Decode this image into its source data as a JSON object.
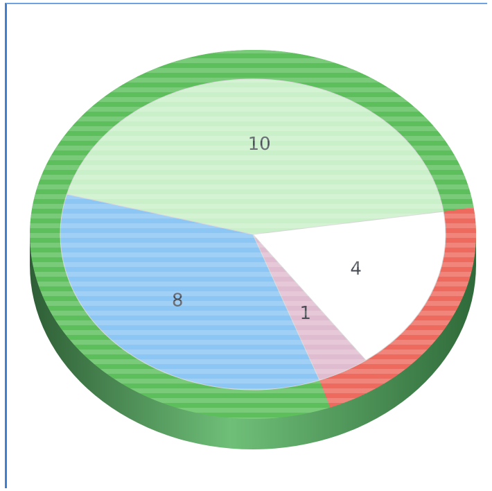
{
  "chart_data": {
    "type": "pie",
    "title": "",
    "slices": [
      {
        "label": "10",
        "value": 10,
        "color": "#c9f0c9",
        "edge_color": "#5cbf5c"
      },
      {
        "label": "4",
        "value": 4,
        "color": "#ffffff",
        "edge_color": "#ef6a5e"
      },
      {
        "label": "1",
        "value": 1,
        "color": "#e0bcd0",
        "edge_color": "#ef6a5e"
      },
      {
        "label": "8",
        "value": 8,
        "color": "#8cc6f5",
        "edge_color": "#5cbf5c"
      }
    ],
    "style": "3d-disc",
    "start_angle_deg": 165,
    "rim_color": "#5cbf5c",
    "base_color": "#3f8a4a"
  }
}
